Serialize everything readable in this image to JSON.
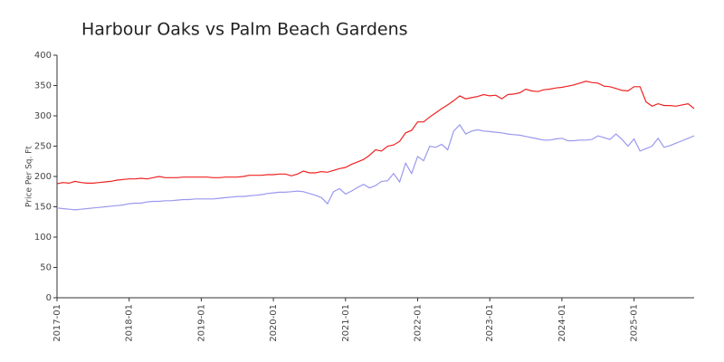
{
  "chart_data": {
    "type": "line",
    "title": "Harbour Oaks vs Palm Beach Gardens",
    "y_label": "Price Per Sq. Ft",
    "categories": [
      "2017-01",
      null,
      null,
      null,
      null,
      null,
      null,
      null,
      null,
      null,
      null,
      null,
      "2018-01",
      null,
      null,
      null,
      null,
      null,
      null,
      null,
      null,
      null,
      null,
      null,
      "2019-01",
      null,
      null,
      null,
      null,
      null,
      null,
      null,
      null,
      null,
      null,
      null,
      "2020-01",
      null,
      null,
      null,
      null,
      null,
      null,
      null,
      null,
      null,
      null,
      null,
      "2021-01",
      null,
      null,
      null,
      null,
      null,
      null,
      null,
      null,
      null,
      null,
      null,
      "2022-01",
      null,
      null,
      null,
      null,
      null,
      null,
      null,
      null,
      null,
      null,
      null,
      "2023-01",
      null,
      null,
      null,
      null,
      null,
      null,
      null,
      null,
      null,
      null,
      null,
      "2024-01",
      null,
      null,
      null,
      null,
      null,
      null,
      null,
      null,
      null,
      null,
      null,
      "2025-01",
      null,
      null,
      null,
      null,
      null,
      null,
      null,
      null,
      null,
      null
    ],
    "series": [
      {
        "color": "#ee2222",
        "values": [
          188,
          190,
          189,
          192,
          190,
          189,
          189,
          190,
          191,
          192,
          194,
          195,
          196,
          196,
          197,
          196,
          198,
          200,
          198,
          198,
          198,
          199,
          199,
          199,
          199,
          199,
          198,
          198,
          199,
          199,
          199,
          200,
          202,
          202,
          202,
          203,
          203,
          204,
          204,
          201,
          204,
          209,
          206,
          206,
          208,
          207,
          210,
          213,
          215,
          220,
          224,
          228,
          235,
          244,
          242,
          250,
          252,
          258,
          272,
          276,
          290,
          290,
          298,
          305,
          312,
          318,
          325,
          333,
          328,
          330,
          332,
          335,
          333,
          334,
          328,
          335,
          336,
          338,
          344,
          341,
          340,
          343,
          344,
          346,
          347,
          349,
          351,
          354,
          357,
          355,
          354,
          349,
          348,
          345,
          342,
          341,
          348,
          348,
          323,
          316,
          320,
          317,
          317,
          316,
          318,
          320,
          312
        ]
      },
      {
        "color": "#9999ee",
        "values": [
          148,
          147,
          146,
          145,
          146,
          147,
          148,
          149,
          150,
          151,
          152,
          153,
          155,
          156,
          156,
          158,
          159,
          159,
          160,
          160,
          161,
          162,
          162,
          163,
          163,
          163,
          163,
          164,
          165,
          166,
          167,
          167,
          168,
          169,
          170,
          172,
          173,
          174,
          174,
          175,
          176,
          175,
          172,
          169,
          165,
          155,
          175,
          180,
          171,
          176,
          182,
          187,
          181,
          185,
          192,
          193,
          205,
          191,
          222,
          205,
          233,
          226,
          250,
          248,
          253,
          244,
          275,
          285,
          270,
          275,
          277,
          275,
          274,
          273,
          272,
          270,
          269,
          268,
          266,
          264,
          262,
          260,
          260,
          262,
          263,
          259,
          259,
          260,
          260,
          261,
          267,
          264,
          261,
          270,
          261,
          250,
          262,
          242,
          246,
          250,
          263,
          248,
          251,
          255,
          259,
          263,
          267
        ]
      }
    ],
    "ylim": [
      0,
      400
    ],
    "yticks": [
      0,
      50,
      100,
      150,
      200,
      250,
      300,
      350,
      400
    ],
    "grid": false
  }
}
